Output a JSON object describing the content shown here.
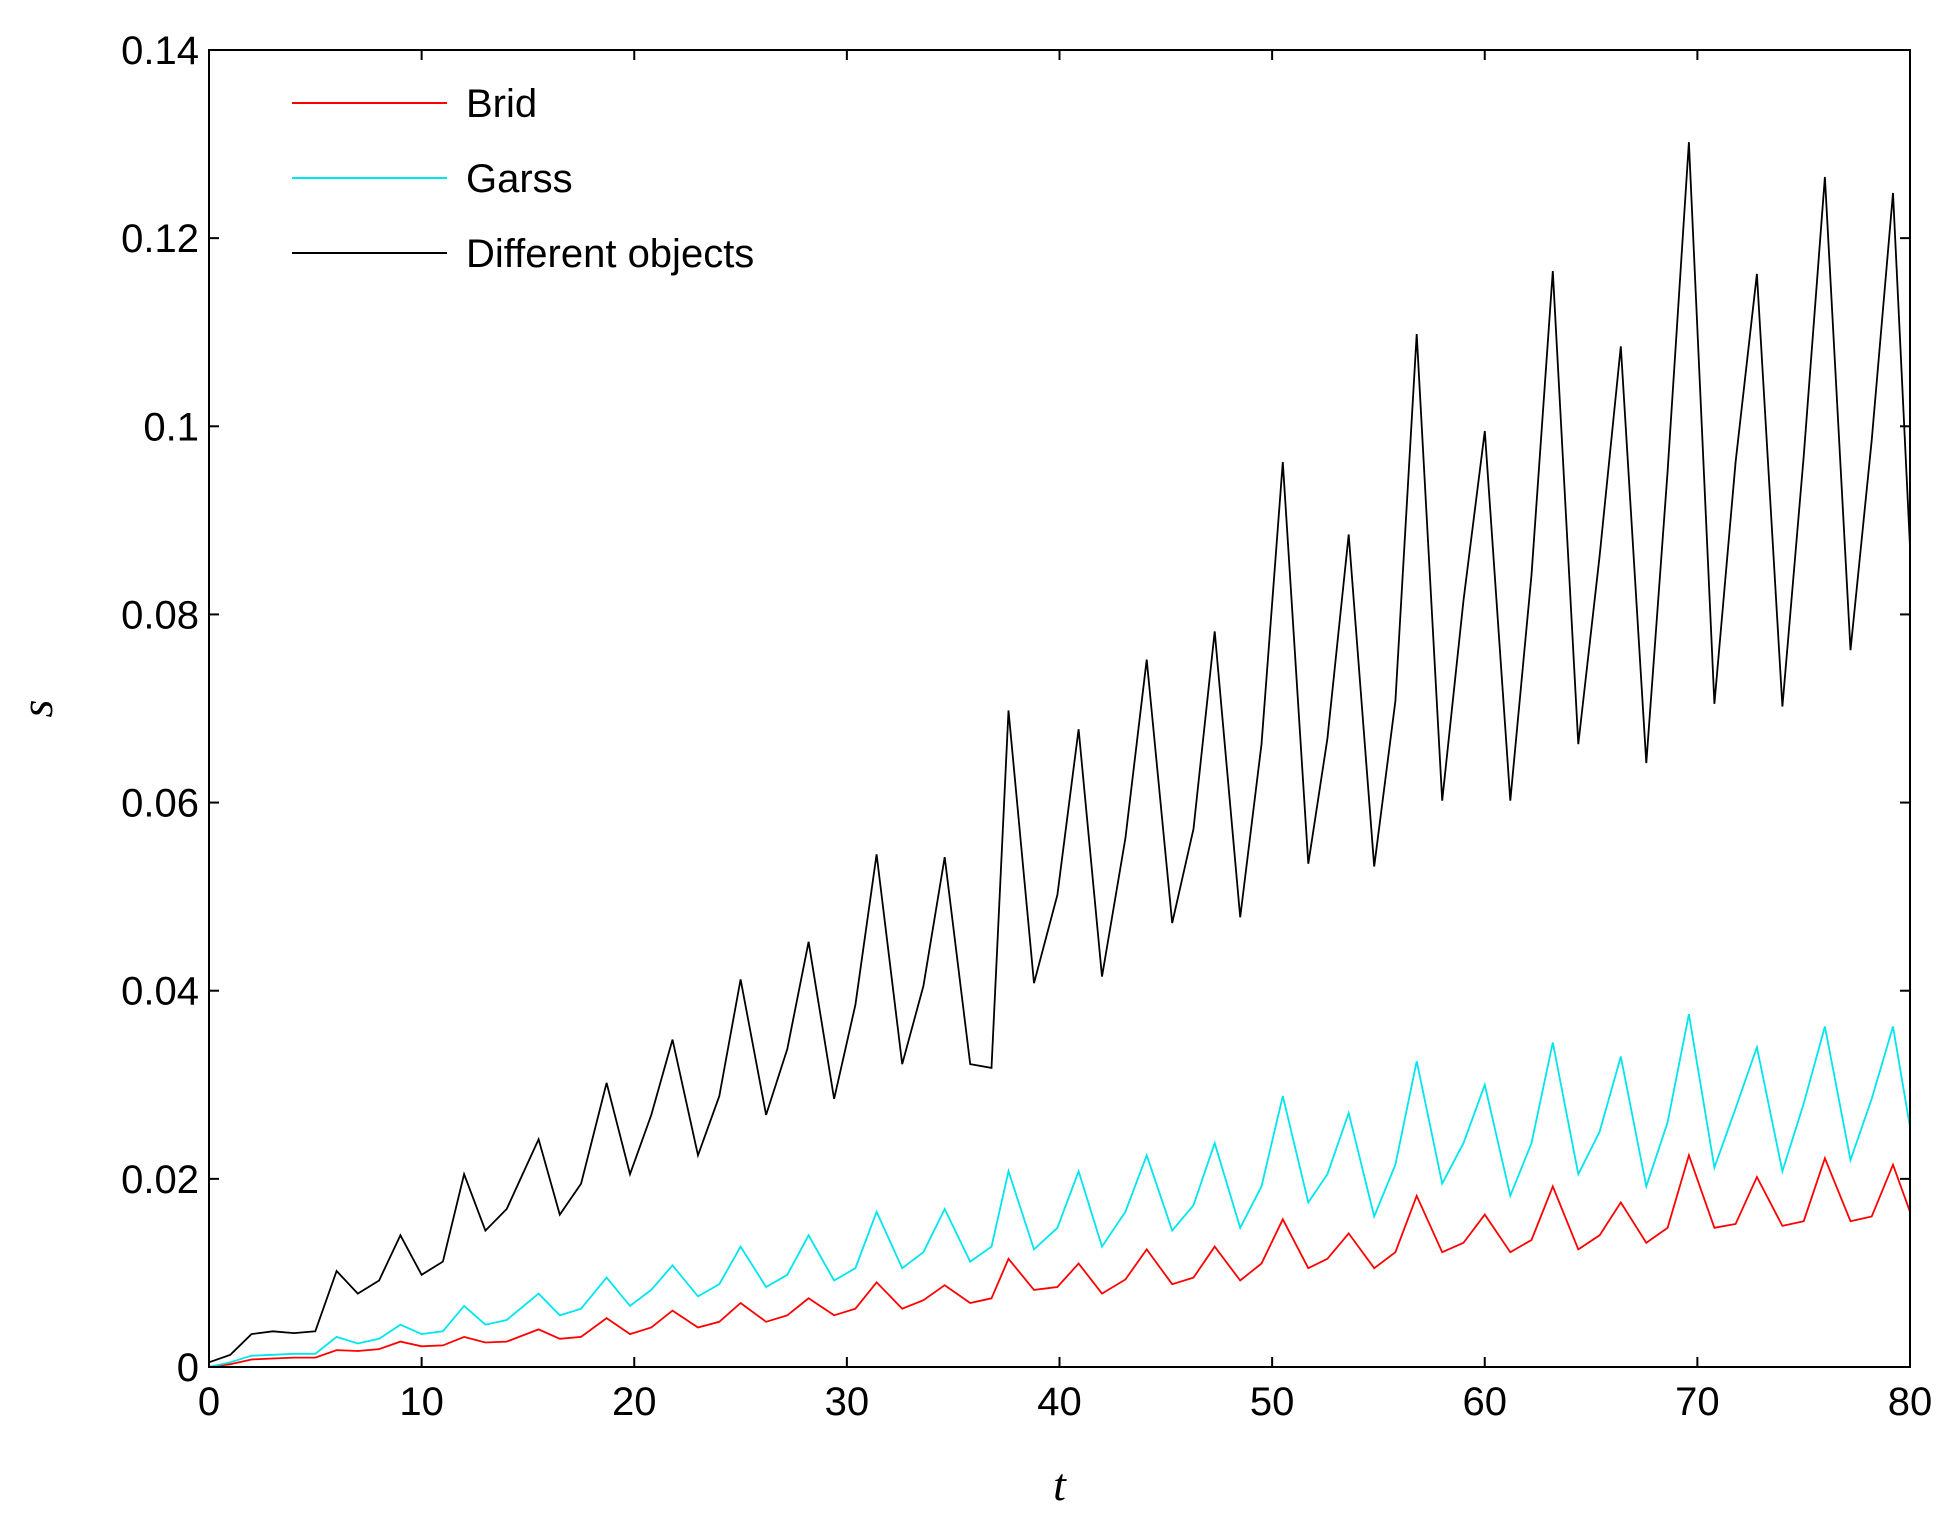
{
  "chart_data": {
    "type": "line",
    "xlabel": "t",
    "ylabel": "s",
    "xlim": [
      0,
      80
    ],
    "ylim": [
      0,
      0.14
    ],
    "x_ticks": [
      "0",
      "10",
      "20",
      "30",
      "40",
      "50",
      "60",
      "70",
      "80"
    ],
    "y_ticks": [
      "0",
      "0.02",
      "0.04",
      "0.06",
      "0.08",
      "0.1",
      "0.12",
      "0.14"
    ],
    "grid": false,
    "legend_position": "top-left",
    "colors": {
      "Brid": "#ff0000",
      "Garss": "#00e5ee",
      "Different objects": "#000000"
    },
    "series": [
      {
        "name": "Brid",
        "points": [
          [
            0,
            0
          ],
          [
            1,
            0.0003
          ],
          [
            2,
            0.0008
          ],
          [
            3,
            0.0009
          ],
          [
            4,
            0.001
          ],
          [
            5,
            0.001
          ],
          [
            6,
            0.0018
          ],
          [
            7,
            0.0017
          ],
          [
            8,
            0.0019
          ],
          [
            9,
            0.0027
          ],
          [
            10,
            0.0022
          ],
          [
            11,
            0.0023
          ],
          [
            12,
            0.0032
          ],
          [
            13,
            0.0026
          ],
          [
            14,
            0.0027
          ],
          [
            15.5,
            0.004
          ],
          [
            16.5,
            0.003
          ],
          [
            17.5,
            0.0032
          ],
          [
            18.7,
            0.0052
          ],
          [
            19.8,
            0.0035
          ],
          [
            20.8,
            0.0042
          ],
          [
            21.8,
            0.006
          ],
          [
            23,
            0.0042
          ],
          [
            24,
            0.0048
          ],
          [
            25,
            0.0068
          ],
          [
            26.2,
            0.0048
          ],
          [
            27.2,
            0.0055
          ],
          [
            28.2,
            0.0073
          ],
          [
            29.4,
            0.0055
          ],
          [
            30.4,
            0.0062
          ],
          [
            31.4,
            0.009
          ],
          [
            32.6,
            0.0062
          ],
          [
            33.6,
            0.0071
          ],
          [
            34.6,
            0.0087
          ],
          [
            35.8,
            0.0068
          ],
          [
            36.8,
            0.0073
          ],
          [
            37.6,
            0.0115
          ],
          [
            38.8,
            0.0082
          ],
          [
            39.9,
            0.0085
          ],
          [
            40.9,
            0.011
          ],
          [
            42,
            0.0078
          ],
          [
            43.1,
            0.0093
          ],
          [
            44.1,
            0.0125
          ],
          [
            45.3,
            0.0088
          ],
          [
            46.3,
            0.0095
          ],
          [
            47.3,
            0.0128
          ],
          [
            48.5,
            0.0092
          ],
          [
            49.5,
            0.011
          ],
          [
            50.5,
            0.0157
          ],
          [
            51.7,
            0.0105
          ],
          [
            52.6,
            0.0115
          ],
          [
            53.6,
            0.0142
          ],
          [
            54.8,
            0.0105
          ],
          [
            55.8,
            0.0122
          ],
          [
            56.8,
            0.0182
          ],
          [
            58,
            0.0122
          ],
          [
            59,
            0.0132
          ],
          [
            60,
            0.0162
          ],
          [
            61.2,
            0.0122
          ],
          [
            62.2,
            0.0135
          ],
          [
            63.2,
            0.0192
          ],
          [
            64.4,
            0.0125
          ],
          [
            65.4,
            0.014
          ],
          [
            66.4,
            0.0175
          ],
          [
            67.6,
            0.0132
          ],
          [
            68.6,
            0.0148
          ],
          [
            69.6,
            0.0225
          ],
          [
            70.8,
            0.0148
          ],
          [
            71.8,
            0.0152
          ],
          [
            72.8,
            0.0202
          ],
          [
            74,
            0.015
          ],
          [
            75,
            0.0155
          ],
          [
            76,
            0.0222
          ],
          [
            77.2,
            0.0155
          ],
          [
            78.2,
            0.016
          ],
          [
            79.2,
            0.0215
          ],
          [
            80,
            0.0165
          ]
        ]
      },
      {
        "name": "Garss",
        "points": [
          [
            0,
            0
          ],
          [
            1,
            0.0005
          ],
          [
            2,
            0.0012
          ],
          [
            3,
            0.0013
          ],
          [
            4,
            0.0014
          ],
          [
            5,
            0.0014
          ],
          [
            6,
            0.0032
          ],
          [
            7,
            0.0025
          ],
          [
            8,
            0.003
          ],
          [
            9,
            0.0045
          ],
          [
            10,
            0.0035
          ],
          [
            11,
            0.0038
          ],
          [
            12,
            0.0065
          ],
          [
            13,
            0.0045
          ],
          [
            14,
            0.005
          ],
          [
            15.5,
            0.0078
          ],
          [
            16.5,
            0.0055
          ],
          [
            17.5,
            0.0062
          ],
          [
            18.7,
            0.0095
          ],
          [
            19.8,
            0.0065
          ],
          [
            20.8,
            0.0082
          ],
          [
            21.8,
            0.0108
          ],
          [
            23,
            0.0075
          ],
          [
            24,
            0.0088
          ],
          [
            25,
            0.0128
          ],
          [
            26.2,
            0.0085
          ],
          [
            27.2,
            0.0098
          ],
          [
            28.2,
            0.014
          ],
          [
            29.4,
            0.0092
          ],
          [
            30.4,
            0.0105
          ],
          [
            31.4,
            0.0165
          ],
          [
            32.6,
            0.0105
          ],
          [
            33.6,
            0.0122
          ],
          [
            34.6,
            0.0168
          ],
          [
            35.8,
            0.0112
          ],
          [
            36.8,
            0.0128
          ],
          [
            37.6,
            0.0208
          ],
          [
            38.8,
            0.0125
          ],
          [
            39.9,
            0.0148
          ],
          [
            40.9,
            0.0208
          ],
          [
            42,
            0.0128
          ],
          [
            43.1,
            0.0165
          ],
          [
            44.1,
            0.0225
          ],
          [
            45.3,
            0.0145
          ],
          [
            46.3,
            0.0172
          ],
          [
            47.3,
            0.0238
          ],
          [
            48.5,
            0.0148
          ],
          [
            49.5,
            0.0192
          ],
          [
            50.5,
            0.0288
          ],
          [
            51.7,
            0.0175
          ],
          [
            52.6,
            0.0205
          ],
          [
            53.6,
            0.027
          ],
          [
            54.8,
            0.016
          ],
          [
            55.8,
            0.0215
          ],
          [
            56.8,
            0.0325
          ],
          [
            58,
            0.0195
          ],
          [
            59,
            0.0238
          ],
          [
            60,
            0.03
          ],
          [
            61.2,
            0.0182
          ],
          [
            62.2,
            0.0238
          ],
          [
            63.2,
            0.0345
          ],
          [
            64.4,
            0.0205
          ],
          [
            65.4,
            0.025
          ],
          [
            66.4,
            0.033
          ],
          [
            67.6,
            0.0192
          ],
          [
            68.6,
            0.026
          ],
          [
            69.6,
            0.0375
          ],
          [
            70.8,
            0.0212
          ],
          [
            71.8,
            0.0275
          ],
          [
            72.8,
            0.034
          ],
          [
            74,
            0.0208
          ],
          [
            75,
            0.028
          ],
          [
            76,
            0.0362
          ],
          [
            77.2,
            0.022
          ],
          [
            78.2,
            0.0285
          ],
          [
            79.2,
            0.0362
          ],
          [
            80,
            0.0255
          ]
        ]
      },
      {
        "name": "Different objects",
        "points": [
          [
            0,
            0.0005
          ],
          [
            1,
            0.0013
          ],
          [
            2,
            0.0035
          ],
          [
            3,
            0.0038
          ],
          [
            4,
            0.0036
          ],
          [
            5,
            0.0038
          ],
          [
            6,
            0.0102
          ],
          [
            7,
            0.0078
          ],
          [
            8,
            0.0092
          ],
          [
            9,
            0.014
          ],
          [
            10,
            0.0098
          ],
          [
            11,
            0.0112
          ],
          [
            12,
            0.0205
          ],
          [
            13,
            0.0145
          ],
          [
            14,
            0.0168
          ],
          [
            15.5,
            0.0242
          ],
          [
            16.5,
            0.0162
          ],
          [
            17.5,
            0.0195
          ],
          [
            18.7,
            0.0302
          ],
          [
            19.8,
            0.0205
          ],
          [
            20.8,
            0.0268
          ],
          [
            21.8,
            0.0348
          ],
          [
            23,
            0.0225
          ],
          [
            24,
            0.0288
          ],
          [
            25,
            0.0412
          ],
          [
            26.2,
            0.0268
          ],
          [
            27.2,
            0.0338
          ],
          [
            28.2,
            0.0452
          ],
          [
            29.4,
            0.0285
          ],
          [
            30.4,
            0.0385
          ],
          [
            31.4,
            0.0545
          ],
          [
            32.6,
            0.0322
          ],
          [
            33.6,
            0.0405
          ],
          [
            34.6,
            0.0542
          ],
          [
            35.8,
            0.0322
          ],
          [
            36.8,
            0.0318
          ],
          [
            37.6,
            0.0698
          ],
          [
            38.8,
            0.0408
          ],
          [
            39.9,
            0.0502
          ],
          [
            40.9,
            0.0678
          ],
          [
            42,
            0.0415
          ],
          [
            43.1,
            0.0562
          ],
          [
            44.1,
            0.0752
          ],
          [
            45.3,
            0.0472
          ],
          [
            46.3,
            0.0572
          ],
          [
            47.3,
            0.0782
          ],
          [
            48.5,
            0.0478
          ],
          [
            49.5,
            0.0662
          ],
          [
            50.5,
            0.0962
          ],
          [
            51.7,
            0.0535
          ],
          [
            52.6,
            0.0668
          ],
          [
            53.6,
            0.0885
          ],
          [
            54.8,
            0.0532
          ],
          [
            55.8,
            0.0708
          ],
          [
            56.8,
            0.1098
          ],
          [
            58,
            0.0602
          ],
          [
            59,
            0.0815
          ],
          [
            60,
            0.0995
          ],
          [
            61.2,
            0.0602
          ],
          [
            62.2,
            0.0842
          ],
          [
            63.2,
            0.1165
          ],
          [
            64.4,
            0.0662
          ],
          [
            65.4,
            0.0862
          ],
          [
            66.4,
            0.1085
          ],
          [
            67.6,
            0.0642
          ],
          [
            68.6,
            0.0952
          ],
          [
            69.6,
            0.1302
          ],
          [
            70.8,
            0.0705
          ],
          [
            71.8,
            0.0962
          ],
          [
            72.8,
            0.1162
          ],
          [
            74,
            0.0702
          ],
          [
            75,
            0.0968
          ],
          [
            76,
            0.1265
          ],
          [
            77.2,
            0.0762
          ],
          [
            78.2,
            0.0985
          ],
          [
            79.2,
            0.1248
          ],
          [
            80,
            0.0872
          ]
        ]
      }
    ]
  }
}
